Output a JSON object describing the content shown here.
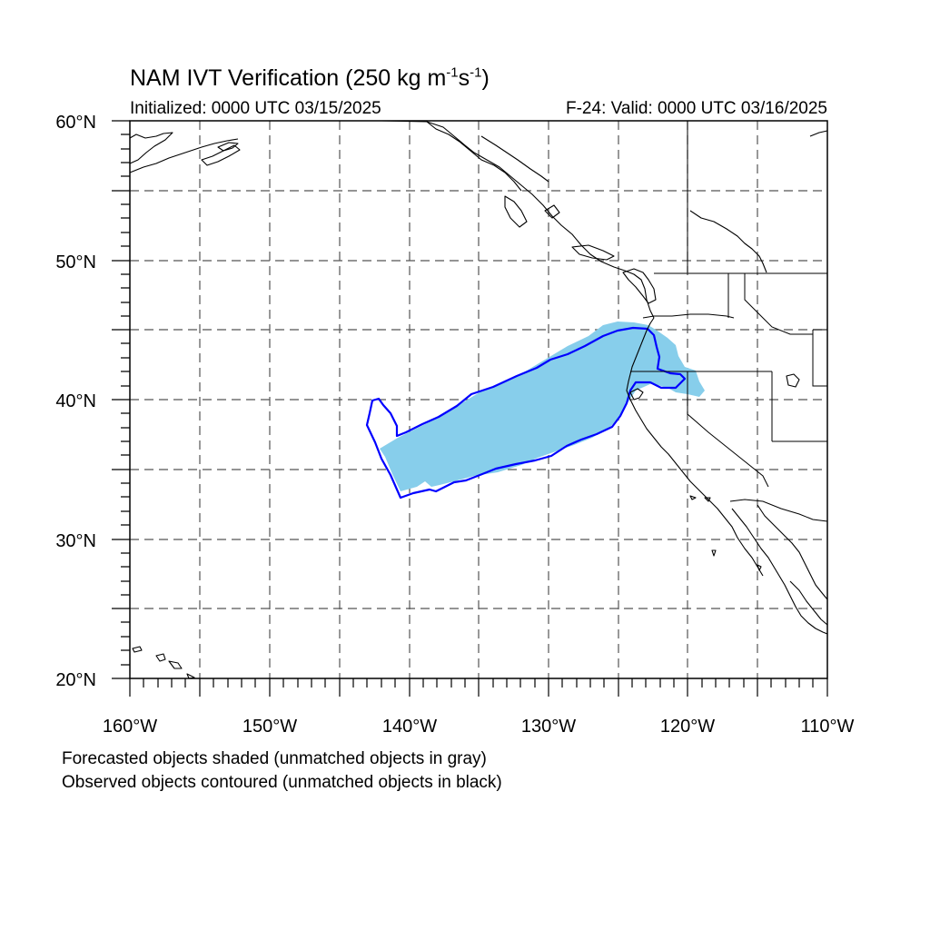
{
  "title": {
    "main": "NAM IVT Verification (250 kg m",
    "exp1": "-1",
    "mid": "s",
    "exp2": "-1",
    "end": ")"
  },
  "initialized": "Initialized: 0000 UTC 03/15/2025",
  "valid": "F-24: Valid: 0000 UTC 03/16/2025",
  "footer": {
    "line1": "Forecasted objects shaded (unmatched objects in gray)",
    "line2": "Observed objects contoured (unmatched objects in black)"
  },
  "map": {
    "lat_labels": [
      "60°N",
      "50°N",
      "40°N",
      "30°N",
      "20°N"
    ],
    "lon_labels": [
      "160°W",
      "150°W",
      "140°W",
      "130°W",
      "120°W",
      "110°W"
    ],
    "lat_range": [
      20,
      60
    ],
    "lon_range": [
      -160,
      -110
    ],
    "grid_interval_deg": 5,
    "grid_style": "dashed",
    "colors": {
      "forecast_fill": "#87ceeb",
      "observed_contour": "#0000ff",
      "coastline": "#000000",
      "grid": "#555555"
    }
  }
}
